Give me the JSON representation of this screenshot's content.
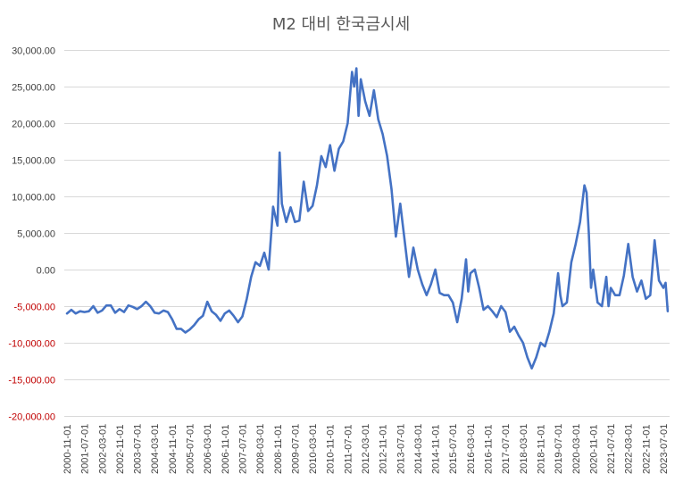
{
  "chart_data": {
    "type": "line",
    "title": "M2 대비 한국금시세",
    "xlabel": "",
    "ylabel": "",
    "ylim": [
      -20000,
      30000
    ],
    "y_ticks": [
      30000,
      25000,
      20000,
      15000,
      10000,
      5000,
      0,
      -5000,
      -10000,
      -15000,
      -20000
    ],
    "y_tick_labels": [
      "30,000.00",
      "25,000.00",
      "20,000.00",
      "15,000.00",
      "10,000.00",
      "5,000.00",
      "0.00",
      "-5,000.00",
      "-10,000.00",
      "-15,000.00",
      "-20,000.00"
    ],
    "x_tick_labels": [
      "2000-11-01",
      "2001-07-01",
      "2002-03-01",
      "2002-11-01",
      "2003-07-01",
      "2004-03-01",
      "2004-11-01",
      "2005-07-01",
      "2006-03-01",
      "2006-11-01",
      "2007-07-01",
      "2008-03-01",
      "2008-11-01",
      "2009-07-01",
      "2010-03-01",
      "2010-11-01",
      "2011-07-01",
      "2012-03-01",
      "2012-11-01",
      "2013-07-01",
      "2014-03-01",
      "2014-11-01",
      "2015-07-01",
      "2016-03-01",
      "2016-11-01",
      "2017-07-01",
      "2018-03-01",
      "2018-11-01",
      "2019-07-01",
      "2020-03-01",
      "2020-11-01",
      "2021-07-01",
      "2022-03-01",
      "2022-11-01",
      "2023-07-01"
    ],
    "grid": true,
    "legend": "none",
    "negative_label_color": "#c00000",
    "positive_label_color": "#404040",
    "series": [
      {
        "color": "#4472c4",
        "points": [
          [
            "2000-11-01",
            -6000
          ],
          [
            "2001-01-01",
            -5500
          ],
          [
            "2001-03-01",
            -6000
          ],
          [
            "2001-05-01",
            -5700
          ],
          [
            "2001-07-01",
            -5800
          ],
          [
            "2001-09-01",
            -5700
          ],
          [
            "2001-11-01",
            -5000
          ],
          [
            "2002-01-01",
            -5900
          ],
          [
            "2002-03-01",
            -5600
          ],
          [
            "2002-05-01",
            -4900
          ],
          [
            "2002-07-01",
            -4900
          ],
          [
            "2002-09-01",
            -5900
          ],
          [
            "2002-11-01",
            -5400
          ],
          [
            "2003-01-01",
            -5800
          ],
          [
            "2003-03-01",
            -4900
          ],
          [
            "2003-05-01",
            -5100
          ],
          [
            "2003-07-01",
            -5400
          ],
          [
            "2003-09-01",
            -5000
          ],
          [
            "2003-11-01",
            -4400
          ],
          [
            "2004-01-01",
            -5000
          ],
          [
            "2004-03-01",
            -5900
          ],
          [
            "2004-05-01",
            -6000
          ],
          [
            "2004-07-01",
            -5600
          ],
          [
            "2004-09-01",
            -5800
          ],
          [
            "2004-11-01",
            -6800
          ],
          [
            "2005-01-01",
            -8100
          ],
          [
            "2005-03-01",
            -8100
          ],
          [
            "2005-05-01",
            -8600
          ],
          [
            "2005-07-01",
            -8200
          ],
          [
            "2005-09-01",
            -7600
          ],
          [
            "2005-11-01",
            -6800
          ],
          [
            "2006-01-01",
            -6300
          ],
          [
            "2006-03-01",
            -4400
          ],
          [
            "2006-05-01",
            -5700
          ],
          [
            "2006-07-01",
            -6200
          ],
          [
            "2006-09-01",
            -7000
          ],
          [
            "2006-11-01",
            -6000
          ],
          [
            "2007-01-01",
            -5600
          ],
          [
            "2007-03-01",
            -6300
          ],
          [
            "2007-05-01",
            -7200
          ],
          [
            "2007-07-01",
            -6400
          ],
          [
            "2007-09-01",
            -4000
          ],
          [
            "2007-11-01",
            -1000
          ],
          [
            "2008-01-01",
            1000
          ],
          [
            "2008-03-01",
            500
          ],
          [
            "2008-05-01",
            2300
          ],
          [
            "2008-07-01",
            0
          ],
          [
            "2008-09-01",
            8600
          ],
          [
            "2008-11-01",
            6000
          ],
          [
            "2008-12-01",
            16000
          ],
          [
            "2009-01-01",
            9000
          ],
          [
            "2009-03-01",
            6500
          ],
          [
            "2009-05-01",
            8500
          ],
          [
            "2009-07-01",
            6500
          ],
          [
            "2009-09-01",
            6700
          ],
          [
            "2009-11-01",
            12000
          ],
          [
            "2010-01-01",
            8000
          ],
          [
            "2010-03-01",
            8700
          ],
          [
            "2010-05-01",
            11500
          ],
          [
            "2010-07-01",
            15500
          ],
          [
            "2010-09-01",
            14000
          ],
          [
            "2010-11-01",
            17000
          ],
          [
            "2011-01-01",
            13500
          ],
          [
            "2011-03-01",
            16500
          ],
          [
            "2011-05-01",
            17500
          ],
          [
            "2011-07-01",
            20000
          ],
          [
            "2011-09-01",
            27000
          ],
          [
            "2011-10-01",
            25000
          ],
          [
            "2011-11-01",
            27500
          ],
          [
            "2011-12-01",
            21000
          ],
          [
            "2012-01-01",
            26000
          ],
          [
            "2012-03-01",
            23000
          ],
          [
            "2012-05-01",
            21000
          ],
          [
            "2012-07-01",
            24500
          ],
          [
            "2012-09-01",
            20500
          ],
          [
            "2012-11-01",
            18500
          ],
          [
            "2013-01-01",
            15500
          ],
          [
            "2013-03-01",
            11000
          ],
          [
            "2013-05-01",
            4500
          ],
          [
            "2013-07-01",
            9000
          ],
          [
            "2013-09-01",
            4000
          ],
          [
            "2013-11-01",
            -1000
          ],
          [
            "2014-01-01",
            3000
          ],
          [
            "2014-03-01",
            0
          ],
          [
            "2014-05-01",
            -2000
          ],
          [
            "2014-07-01",
            -3500
          ],
          [
            "2014-09-01",
            -2000
          ],
          [
            "2014-11-01",
            0
          ],
          [
            "2015-01-01",
            -3200
          ],
          [
            "2015-03-01",
            -3500
          ],
          [
            "2015-05-01",
            -3500
          ],
          [
            "2015-07-01",
            -4500
          ],
          [
            "2015-09-01",
            -7200
          ],
          [
            "2015-11-01",
            -4000
          ],
          [
            "2016-01-01",
            1400
          ],
          [
            "2016-02-01",
            -3000
          ],
          [
            "2016-03-01",
            -500
          ],
          [
            "2016-05-01",
            0
          ],
          [
            "2016-07-01",
            -2500
          ],
          [
            "2016-09-01",
            -5500
          ],
          [
            "2016-11-01",
            -5000
          ],
          [
            "2017-01-01",
            -5700
          ],
          [
            "2017-03-01",
            -6500
          ],
          [
            "2017-05-01",
            -5000
          ],
          [
            "2017-07-01",
            -5800
          ],
          [
            "2017-09-01",
            -8500
          ],
          [
            "2017-11-01",
            -7800
          ],
          [
            "2018-01-01",
            -9000
          ],
          [
            "2018-03-01",
            -10000
          ],
          [
            "2018-05-01",
            -12000
          ],
          [
            "2018-07-01",
            -13500
          ],
          [
            "2018-09-01",
            -12000
          ],
          [
            "2018-11-01",
            -10000
          ],
          [
            "2019-01-01",
            -10500
          ],
          [
            "2019-03-01",
            -8500
          ],
          [
            "2019-05-01",
            -6000
          ],
          [
            "2019-07-01",
            -500
          ],
          [
            "2019-08-01",
            -3500
          ],
          [
            "2019-09-01",
            -5000
          ],
          [
            "2019-11-01",
            -4500
          ],
          [
            "2020-01-01",
            1000
          ],
          [
            "2020-03-01",
            3500
          ],
          [
            "2020-05-01",
            6500
          ],
          [
            "2020-07-01",
            11500
          ],
          [
            "2020-08-01",
            10500
          ],
          [
            "2020-09-01",
            5000
          ],
          [
            "2020-10-01",
            -2500
          ],
          [
            "2020-11-01",
            0
          ],
          [
            "2021-01-01",
            -4500
          ],
          [
            "2021-03-01",
            -5000
          ],
          [
            "2021-05-01",
            -1000
          ],
          [
            "2021-06-01",
            -5000
          ],
          [
            "2021-07-01",
            -2500
          ],
          [
            "2021-09-01",
            -3500
          ],
          [
            "2021-11-01",
            -3500
          ],
          [
            "2022-01-01",
            -800
          ],
          [
            "2022-03-01",
            3500
          ],
          [
            "2022-05-01",
            -1000
          ],
          [
            "2022-07-01",
            -3000
          ],
          [
            "2022-09-01",
            -1500
          ],
          [
            "2022-11-01",
            -4000
          ],
          [
            "2023-01-01",
            -3500
          ],
          [
            "2023-03-01",
            4000
          ],
          [
            "2023-05-01",
            -1500
          ],
          [
            "2023-07-01",
            -2500
          ],
          [
            "2023-08-01",
            -1800
          ],
          [
            "2023-09-01",
            -5700
          ]
        ]
      }
    ]
  }
}
